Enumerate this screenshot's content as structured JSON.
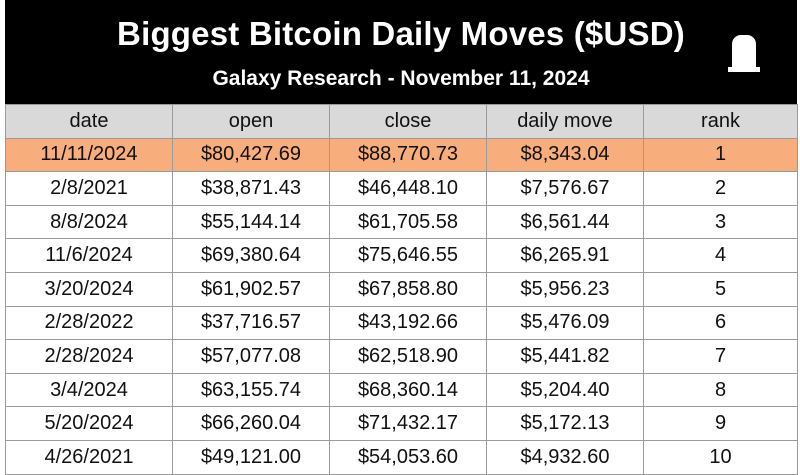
{
  "header": {
    "title": "Biggest Bitcoin Daily Moves ($USD)",
    "subtitle": "Galaxy Research - November 11, 2024",
    "logo_icon": "galaxy-square-logo-icon"
  },
  "colors": {
    "header_bg": "#000000",
    "column_header_bg": "#d9d9d9",
    "highlight_row_bg": "#f8ad7c",
    "grid_line": "#9a9a9a"
  },
  "chart_data": {
    "type": "table",
    "title": "Biggest Bitcoin Daily Moves ($USD)",
    "subtitle": "Galaxy Research - November 11, 2024",
    "columns": [
      "date",
      "open",
      "close",
      "daily move",
      "rank"
    ],
    "highlighted_row": 0,
    "rows": [
      [
        "11/11/2024",
        "$80,427.69",
        "$88,770.73",
        "$8,343.04",
        "1"
      ],
      [
        "2/8/2021",
        "$38,871.43",
        "$46,448.10",
        "$7,576.67",
        "2"
      ],
      [
        "8/8/2024",
        "$55,144.14",
        "$61,705.58",
        "$6,561.44",
        "3"
      ],
      [
        "11/6/2024",
        "$69,380.64",
        "$75,646.55",
        "$6,265.91",
        "4"
      ],
      [
        "3/20/2024",
        "$61,902.57",
        "$67,858.80",
        "$5,956.23",
        "5"
      ],
      [
        "2/28/2022",
        "$37,716.57",
        "$43,192.66",
        "$5,476.09",
        "6"
      ],
      [
        "2/28/2024",
        "$57,077.08",
        "$62,518.90",
        "$5,441.82",
        "7"
      ],
      [
        "3/4/2024",
        "$63,155.74",
        "$68,360.14",
        "$5,204.40",
        "8"
      ],
      [
        "5/20/2024",
        "$66,260.04",
        "$71,432.17",
        "$5,172.13",
        "9"
      ],
      [
        "4/26/2021",
        "$49,121.00",
        "$54,053.60",
        "$4,932.60",
        "10"
      ]
    ]
  }
}
